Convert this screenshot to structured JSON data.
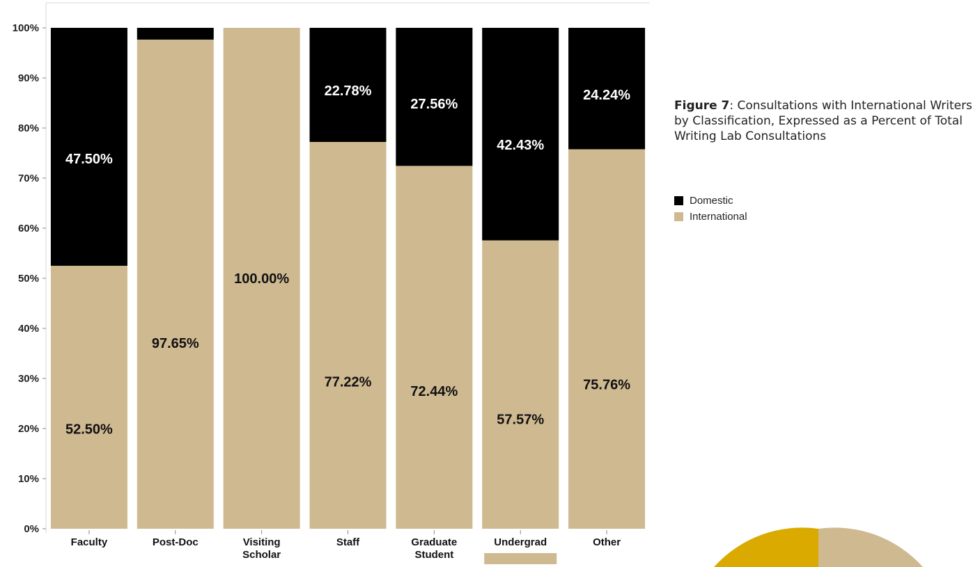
{
  "caption": {
    "figure_label": "Figure 7",
    "text": ": Consultations with International Writers by Classification, Expressed as a Percent of Total Writing Lab Consultations"
  },
  "legend": [
    {
      "label": "Domestic",
      "color": "#000000"
    },
    {
      "label": "International",
      "color": "#cfb991"
    }
  ],
  "decoration": {
    "gold": "#daaa00",
    "tan": "#cfb991"
  },
  "chart_data": {
    "type": "bar",
    "stacked": true,
    "orientation": "vertical",
    "categories": [
      [
        "Faculty"
      ],
      [
        "Post-Doc"
      ],
      [
        "Visiting",
        "Scholar"
      ],
      [
        "Staff"
      ],
      [
        "Graduate",
        "Student"
      ],
      [
        "Undergrad"
      ],
      [
        "Other"
      ]
    ],
    "series": [
      {
        "name": "International",
        "color": "#cfb991",
        "values": [
          52.5,
          97.65,
          100.0,
          77.22,
          72.44,
          57.57,
          75.76
        ],
        "labels": [
          "52.50%",
          "97.65%",
          "100.00%",
          "77.22%",
          "72.44%",
          "57.57%",
          "75.76%"
        ]
      },
      {
        "name": "Domestic",
        "color": "#000000",
        "values": [
          47.5,
          2.35,
          0,
          22.78,
          27.56,
          42.43,
          24.24
        ],
        "labels": [
          "47.50%",
          "",
          "",
          "22.78%",
          "27.56%",
          "42.43%",
          "24.24%"
        ]
      }
    ],
    "ylim": [
      0,
      100
    ],
    "yticks": [
      "0%",
      "10%",
      "20%",
      "30%",
      "40%",
      "50%",
      "60%",
      "70%",
      "80%",
      "90%",
      "100%"
    ],
    "xlabel": "",
    "ylabel": "",
    "legend_position": "right",
    "grid": false
  }
}
